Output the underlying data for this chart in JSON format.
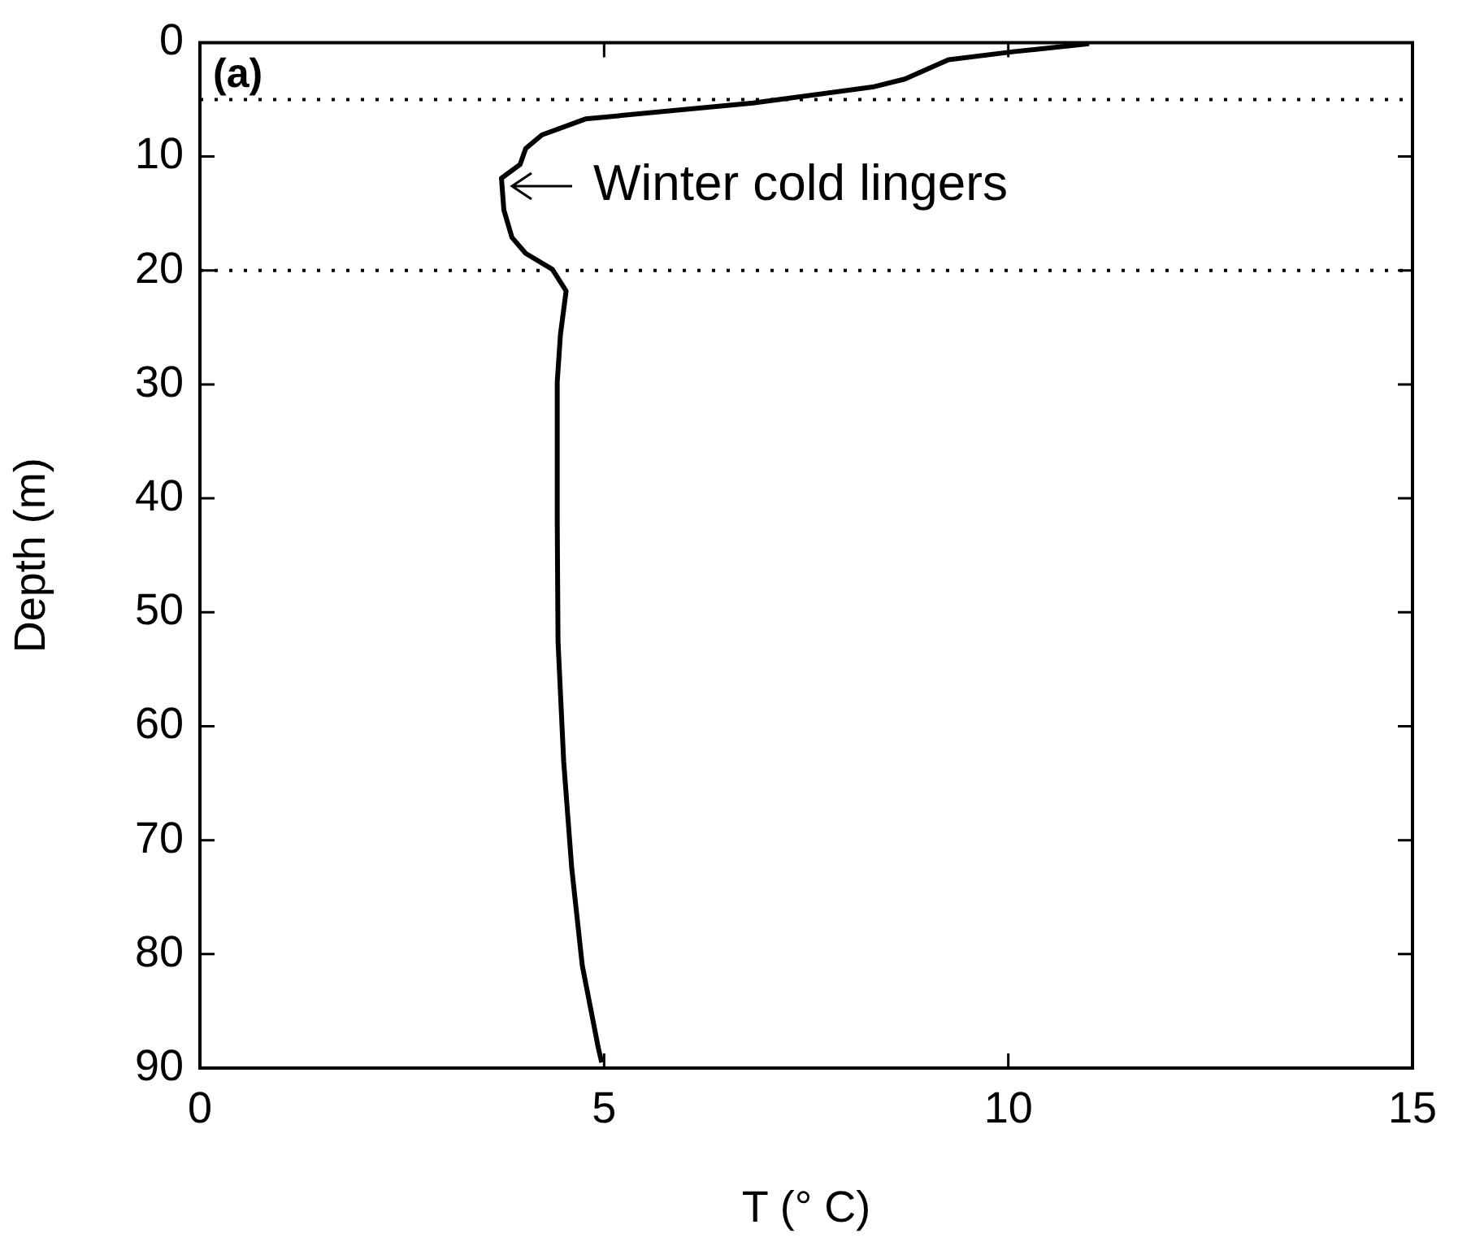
{
  "chart_data": {
    "type": "line",
    "xlabel": "T (° C)",
    "ylabel": "Depth (m)",
    "series": [
      {
        "color": "#000000",
        "x": [
          11.0,
          10.06,
          9.26,
          8.72,
          8.32,
          6.84,
          4.77,
          4.23,
          4.03,
          3.96,
          3.73,
          3.76,
          3.86,
          4.03,
          4.36,
          4.53,
          4.46,
          4.42,
          4.42,
          4.43,
          4.5,
          4.6,
          4.73,
          4.93,
          4.97
        ],
        "values": [
          0.1,
          0.8,
          1.5,
          3.2,
          3.9,
          5.3,
          6.7,
          8.1,
          9.3,
          10.7,
          11.9,
          14.7,
          17.1,
          18.5,
          19.9,
          21.8,
          25.6,
          29.8,
          41.8,
          52.6,
          63.1,
          72.5,
          81.0,
          88.3,
          89.5
        ]
      }
    ],
    "xlim": [
      0,
      15
    ],
    "xticks": [
      0,
      5,
      10,
      15
    ],
    "ylim": [
      90,
      0
    ],
    "yticks": [
      0,
      10,
      20,
      30,
      40,
      50,
      60,
      70,
      80,
      90
    ],
    "marker": "none",
    "line_style": "solid",
    "legend": false,
    "grid": false,
    "ref_lines": [
      {
        "axis": "y",
        "value": 5,
        "color": "#000000",
        "line_style": "dotted"
      },
      {
        "axis": "y",
        "value": 20,
        "color": "#000000",
        "line_style": "dotted"
      }
    ],
    "annotations": [
      "(a)",
      {
        "text": "Winter cold lingers",
        "x": 3.8,
        "y": 12.6
      }
    ]
  }
}
